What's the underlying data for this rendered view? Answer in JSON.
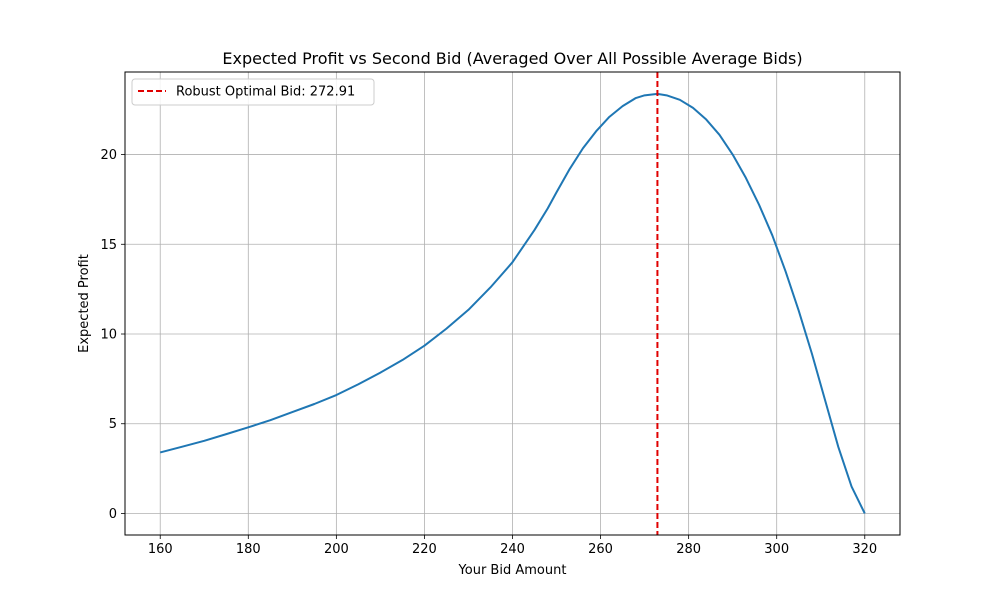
{
  "chart_data": {
    "type": "line",
    "title": "Expected Profit vs Second Bid (Averaged Over All Possible Average Bids)",
    "xlabel": "Your Bid Amount",
    "ylabel": "Expected Profit",
    "xlim": [
      152,
      328
    ],
    "ylim": [
      -1.2,
      24.6
    ],
    "xticks": [
      160,
      180,
      200,
      220,
      240,
      260,
      280,
      300,
      320
    ],
    "yticks": [
      0,
      5,
      10,
      15,
      20
    ],
    "grid": true,
    "legend_position": "upper-left",
    "series": [
      {
        "color": "#1f77b4",
        "x": [
          160,
          165,
          170,
          175,
          180,
          185,
          190,
          195,
          200,
          205,
          210,
          215,
          220,
          225,
          230,
          235,
          240,
          245,
          248,
          250,
          253,
          256,
          259,
          262,
          265,
          268,
          270,
          272.91,
          275,
          278,
          281,
          284,
          287,
          290,
          293,
          296,
          299,
          302,
          305,
          308,
          311,
          314,
          317,
          320
        ],
        "y": [
          3.4,
          3.72,
          4.05,
          4.42,
          4.8,
          5.2,
          5.65,
          6.1,
          6.6,
          7.2,
          7.85,
          8.55,
          9.35,
          10.3,
          11.35,
          12.6,
          14.0,
          15.8,
          17.0,
          17.9,
          19.2,
          20.35,
          21.3,
          22.1,
          22.7,
          23.15,
          23.3,
          23.38,
          23.3,
          23.05,
          22.6,
          21.95,
          21.1,
          20.0,
          18.7,
          17.2,
          15.5,
          13.5,
          11.3,
          8.9,
          6.3,
          3.7,
          1.5,
          0.0
        ]
      }
    ],
    "reference_line": {
      "label": "Robust Optimal Bid: 272.91",
      "x": 272.91,
      "color": "#e00000",
      "style": "dashed"
    }
  }
}
